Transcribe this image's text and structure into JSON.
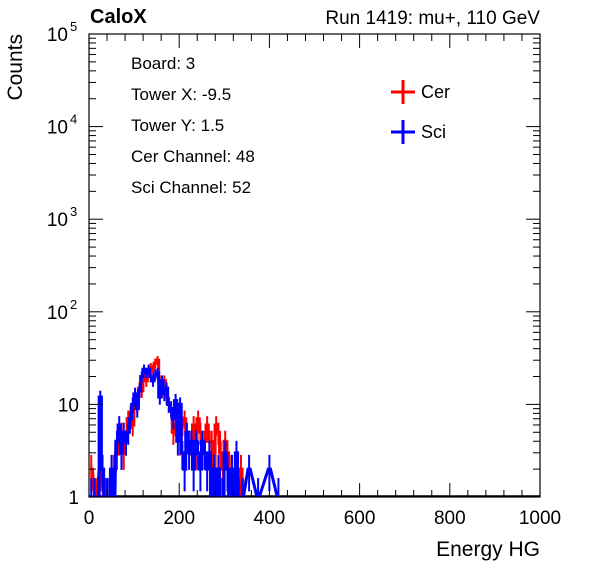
{
  "header": {
    "left": "CaloX",
    "right": "Run 1419: mu+, 110 GeV"
  },
  "info_box": [
    "Board: 3",
    "Tower X: -9.5",
    "Tower Y: 1.5",
    "Cer Channel: 48",
    "Sci Channel: 52"
  ],
  "chart_data": {
    "type": "histogram",
    "xlabel": "Energy HG",
    "ylabel": "Counts",
    "xlim": [
      0,
      1000
    ],
    "ylim": [
      1,
      100000
    ],
    "y_scale": "log",
    "x_ticks": [
      "0",
      "200",
      "400",
      "600",
      "800",
      "1000"
    ],
    "y_ticks": [
      {
        "base": "1",
        "exp": ""
      },
      {
        "base": "10",
        "exp": ""
      },
      {
        "base": "10",
        "exp": "2"
      },
      {
        "base": "10",
        "exp": "3"
      },
      {
        "base": "10",
        "exp": "4"
      },
      {
        "base": "10",
        "exp": "5"
      }
    ],
    "grid": false,
    "legend_position": "top-right",
    "series": [
      {
        "name": "Cer",
        "color": "#ff0000",
        "points": [
          [
            5,
            2
          ],
          [
            15,
            1
          ],
          [
            25,
            2
          ],
          [
            35,
            1
          ],
          [
            45,
            1
          ],
          [
            55,
            2
          ],
          [
            62,
            3
          ],
          [
            67,
            4
          ],
          [
            72,
            5
          ],
          [
            77,
            3
          ],
          [
            82,
            4
          ],
          [
            87,
            7
          ],
          [
            92,
            8
          ],
          [
            97,
            6
          ],
          [
            102,
            12
          ],
          [
            107,
            10
          ],
          [
            112,
            15
          ],
          [
            117,
            14
          ],
          [
            122,
            20
          ],
          [
            127,
            18
          ],
          [
            132,
            22
          ],
          [
            137,
            25
          ],
          [
            142,
            24
          ],
          [
            147,
            28
          ],
          [
            152,
            30
          ],
          [
            157,
            18
          ],
          [
            162,
            14
          ],
          [
            167,
            18
          ],
          [
            172,
            12
          ],
          [
            177,
            10
          ],
          [
            182,
            9
          ],
          [
            187,
            5
          ],
          [
            192,
            6
          ],
          [
            197,
            8
          ],
          [
            202,
            4
          ],
          [
            207,
            6
          ],
          [
            212,
            7
          ],
          [
            217,
            5
          ],
          [
            222,
            4
          ],
          [
            227,
            4
          ],
          [
            232,
            6
          ],
          [
            237,
            3
          ],
          [
            242,
            7
          ],
          [
            247,
            5
          ],
          [
            252,
            3
          ],
          [
            257,
            4
          ],
          [
            262,
            6
          ],
          [
            267,
            4
          ],
          [
            272,
            4
          ],
          [
            277,
            2
          ],
          [
            282,
            6
          ],
          [
            287,
            5
          ],
          [
            292,
            3
          ],
          [
            297,
            2
          ],
          [
            302,
            4
          ],
          [
            307,
            3
          ],
          [
            312,
            2
          ],
          [
            317,
            1
          ],
          [
            322,
            1
          ],
          [
            327,
            2
          ],
          [
            332,
            1
          ],
          [
            337,
            2
          ],
          [
            342,
            1
          ]
        ]
      },
      {
        "name": "Sci",
        "color": "#0000ff",
        "points": [
          [
            5,
            1
          ],
          [
            12,
            1
          ],
          [
            20,
            1
          ],
          [
            25,
            12
          ],
          [
            30,
            2
          ],
          [
            35,
            1
          ],
          [
            40,
            1
          ],
          [
            45,
            1
          ],
          [
            50,
            2
          ],
          [
            55,
            1
          ],
          [
            62,
            4
          ],
          [
            67,
            6
          ],
          [
            72,
            3
          ],
          [
            77,
            5
          ],
          [
            82,
            4
          ],
          [
            87,
            5
          ],
          [
            92,
            7
          ],
          [
            97,
            10
          ],
          [
            102,
            13
          ],
          [
            107,
            9
          ],
          [
            112,
            14
          ],
          [
            117,
            20
          ],
          [
            122,
            24
          ],
          [
            127,
            22
          ],
          [
            132,
            24
          ],
          [
            137,
            20
          ],
          [
            142,
            18
          ],
          [
            147,
            21
          ],
          [
            152,
            22
          ],
          [
            157,
            12
          ],
          [
            162,
            18
          ],
          [
            167,
            13
          ],
          [
            172,
            15
          ],
          [
            177,
            10
          ],
          [
            182,
            9
          ],
          [
            187,
            7
          ],
          [
            192,
            11
          ],
          [
            197,
            4
          ],
          [
            202,
            10
          ],
          [
            207,
            3
          ],
          [
            212,
            2
          ],
          [
            217,
            5
          ],
          [
            222,
            3
          ],
          [
            227,
            4
          ],
          [
            232,
            2
          ],
          [
            237,
            4
          ],
          [
            242,
            3
          ],
          [
            247,
            2
          ],
          [
            252,
            4
          ],
          [
            257,
            3
          ],
          [
            262,
            2
          ],
          [
            267,
            3
          ],
          [
            272,
            1
          ],
          [
            277,
            2
          ],
          [
            282,
            1
          ],
          [
            287,
            2
          ],
          [
            292,
            1
          ],
          [
            297,
            1
          ],
          [
            302,
            3
          ],
          [
            307,
            2
          ],
          [
            312,
            1
          ],
          [
            317,
            2
          ],
          [
            322,
            1
          ],
          [
            327,
            3
          ],
          [
            332,
            1
          ],
          [
            340,
            1
          ],
          [
            355,
            2
          ],
          [
            375,
            1
          ],
          [
            400,
            2
          ],
          [
            420,
            1
          ]
        ]
      }
    ]
  }
}
